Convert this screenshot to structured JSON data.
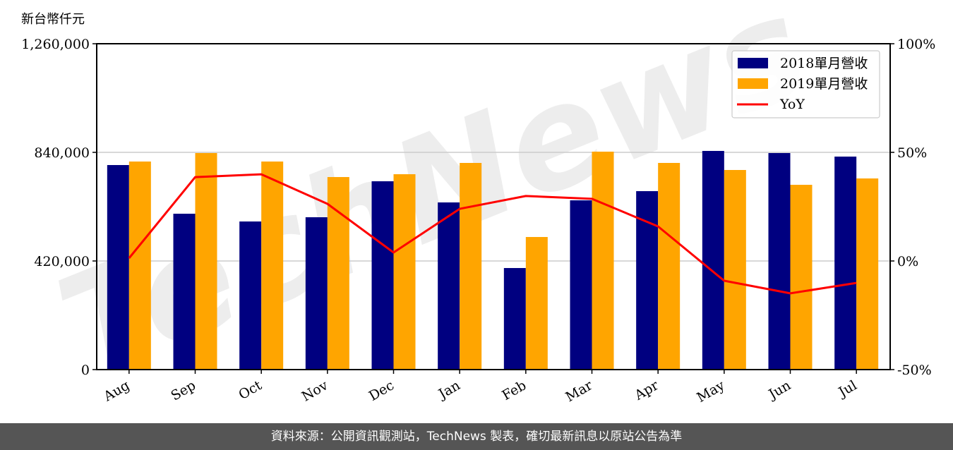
{
  "chart_data": {
    "type": "bar",
    "title": "",
    "ylabel": "新台幣仟元",
    "xlabel": "",
    "ylim": [
      0,
      1260000
    ],
    "y_ticks": [
      "0",
      "420,000",
      "840,000",
      "1,260,000"
    ],
    "y2lim": [
      -50,
      100
    ],
    "y2_ticks": [
      "-50%",
      "0%",
      "50%",
      "100%"
    ],
    "grid": "horizontal",
    "legend_position": "upper right",
    "categories": [
      "Aug",
      "Sep",
      "Oct",
      "Nov",
      "Dec",
      "Jan",
      "Feb",
      "Mar",
      "Apr",
      "May",
      "Jun",
      "Jul"
    ],
    "series": [
      {
        "name": "2018單月營收",
        "type": "bar",
        "color": "#000080",
        "values": [
          790900,
          602700,
          572700,
          589100,
          728200,
          646400,
          392700,
          654500,
          690000,
          845500,
          837300,
          823600
        ]
      },
      {
        "name": "2019單月營收",
        "type": "bar",
        "color": "#FFA500",
        "values": [
          804500,
          837300,
          804500,
          744500,
          755500,
          799100,
          512700,
          842700,
          799100,
          771800,
          714500,
          739100
        ]
      },
      {
        "name": "YoY",
        "type": "line",
        "axis": "right",
        "color": "#FF0000",
        "values": [
          1.3,
          38.6,
          39.9,
          26.3,
          3.9,
          24.0,
          29.9,
          28.6,
          15.9,
          -9.1,
          -14.9,
          -10.1
        ]
      }
    ],
    "watermark": "TechNews"
  },
  "footer": {
    "text": "資料來源：公開資訊觀測站，TechNews 製表，確切最新訊息以原站公告為準"
  }
}
